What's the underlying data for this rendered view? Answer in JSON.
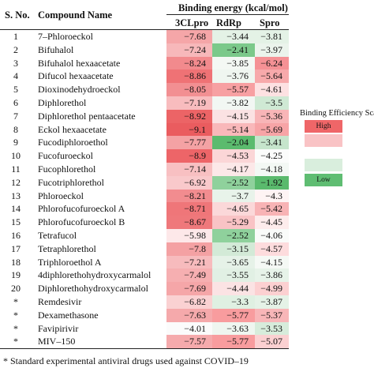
{
  "header": {
    "sno": "S. No.",
    "compound": "Compound Name",
    "group": "Binding energy (kcal/mol)",
    "col1": "3CLpro",
    "col2": "RdRp",
    "col3": "Spro"
  },
  "rows": [
    {
      "sno": "1",
      "name": "7–Phloroeckol",
      "v1": "−7.68",
      "v2": "−3.44",
      "v3": "−3.81"
    },
    {
      "sno": "2",
      "name": "Bifuhalol",
      "v1": "−7.24",
      "v2": "−2.41",
      "v3": "−3.97"
    },
    {
      "sno": "3",
      "name": "Bifuhalol hexaacetate",
      "v1": "−8.24",
      "v2": "−3.85",
      "v3": "−6.24"
    },
    {
      "sno": "4",
      "name": "Difucol hexaacetate",
      "v1": "−8.86",
      "v2": "−3.76",
      "v3": "−5.64"
    },
    {
      "sno": "5",
      "name": "Dioxinodehydroeckol",
      "v1": "−8.05",
      "v2": "−5.57",
      "v3": "−4.61"
    },
    {
      "sno": "6",
      "name": "Diphlorethol",
      "v1": "−7.19",
      "v2": "−3.82",
      "v3": "−3.5"
    },
    {
      "sno": "7",
      "name": "Diphlorethol pentaacetate",
      "v1": "−8.92",
      "v2": "−4.15",
      "v3": "−5.36"
    },
    {
      "sno": "8",
      "name": "Eckol hexaacetate",
      "v1": "−9.1",
      "v2": "−5.14",
      "v3": "−5.69"
    },
    {
      "sno": "9",
      "name": "Fucodiphloroethol",
      "v1": "−7.77",
      "v2": "−2.04",
      "v3": "−3.41"
    },
    {
      "sno": "10",
      "name": "Fucofuroeckol",
      "v1": "−8.9",
      "v2": "−4.53",
      "v3": "−4.25"
    },
    {
      "sno": "11",
      "name": "Fucophlorethol",
      "v1": "−7.14",
      "v2": "−4.17",
      "v3": "−4.18"
    },
    {
      "sno": "12",
      "name": "Fucotriphlorethol",
      "v1": "−6.92",
      "v2": "−2.52",
      "v3": "−1.92"
    },
    {
      "sno": "13",
      "name": "Phloroeckol",
      "v1": "−8.21",
      "v2": "−3.7",
      "v3": "−4.3"
    },
    {
      "sno": "14",
      "name": "Phlorofucofuroeckol A",
      "v1": "−8.71",
      "v2": "−4.65",
      "v3": "−5.42"
    },
    {
      "sno": "15",
      "name": "Phlorofucofuroeckol B",
      "v1": "−8.67",
      "v2": "−5.29",
      "v3": "−4.45"
    },
    {
      "sno": "16",
      "name": "Tetrafucol",
      "v1": "−5.98",
      "v2": "−2.52",
      "v3": "−4.06"
    },
    {
      "sno": "17",
      "name": "Tetraphlorethol",
      "v1": "−7.8",
      "v2": "−3.15",
      "v3": "−4.57"
    },
    {
      "sno": "18",
      "name": "Triphloroethol A",
      "v1": "−7.21",
      "v2": "−3.65",
      "v3": "−4.15"
    },
    {
      "sno": "19",
      "name": "4diphlorethohydroxycarmalol",
      "v1": "−7.49",
      "v2": "−3.55",
      "v3": "−3.86"
    },
    {
      "sno": "20",
      "name": "Diphlorethohydroxycarmalol",
      "v1": "−7.69",
      "v2": "−4.44",
      "v3": "−4.99"
    },
    {
      "sno": "*",
      "name": "Remdesivir",
      "v1": "−6.82",
      "v2": "−3.3",
      "v3": "−3.87"
    },
    {
      "sno": "*",
      "name": "Dexamethasone",
      "v1": "−7.63",
      "v2": "−5.77",
      "v3": "−5.37"
    },
    {
      "sno": "*",
      "name": "Favipirivir",
      "v1": "−4.01",
      "v2": "−3.63",
      "v3": "−3.53"
    },
    {
      "sno": "*",
      "name": "MIV–150",
      "v1": "−7.57",
      "v2": "−5.77",
      "v3": "−5.07"
    }
  ],
  "cell_colors": {
    "v1": [
      "#f5a6a8",
      "#f7b8ba",
      "#f28a8d",
      "#ef7275",
      "#f28f92",
      "#f8bcbe",
      "#ec6466",
      "#ea5c5f",
      "#f4a2a4",
      "#ed6568",
      "#f8c0c2",
      "#f9c9cb",
      "#f28c8f",
      "#ef7679",
      "#ef787b",
      "#fde8e9",
      "#f4a1a3",
      "#f7bbbd",
      "#f6afb1",
      "#f5a6a8",
      "#fad1d2",
      "#f5a9ab",
      "#fbfbfb",
      "#f5aaac"
    ],
    "v2": [
      "#e4f2e6",
      "#7bc98a",
      "#f4f8f4",
      "#eff6f0",
      "#f7a0a2",
      "#f2f7f3",
      "#fbe2e3",
      "#f9b8ba",
      "#5bbb6e",
      "#fbd6d7",
      "#fce8e8",
      "#8fd19c",
      "#e8f3ea",
      "#fbd8d9",
      "#f9c3c5",
      "#8fd19c",
      "#d3ead7",
      "#e6f2e8",
      "#e1f0e4",
      "#fbe3e4",
      "#dff0e2",
      "#f89c9e",
      "#eff6f0",
      "#f89c9e"
    ],
    "v3": [
      "#e4f2e6",
      "#ebf4ec",
      "#f59195",
      "#f7a9ab",
      "#fde1e2",
      "#cfe9d4",
      "#f8b5b7",
      "#f7a4a6",
      "#c6e5cc",
      "#fbfcfb",
      "#f3f8f4",
      "#5aba6d",
      "#fef4f4",
      "#f8b3b5",
      "#fdecec",
      "#f9fbf9",
      "#fddcdd",
      "#f5f9f5",
      "#e7f3e9",
      "#fcd0d1",
      "#e5f2e7",
      "#f8b6b8",
      "#d7ecdb",
      "#fbd0d1"
    ]
  },
  "scale": {
    "title": "Binding Efficiency Scale",
    "high_label": "High",
    "low_label": "Low",
    "colors": [
      "#ef6668",
      "#f9c3c5",
      "#ffffff",
      "#d9eedd",
      "#5fbd72"
    ]
  },
  "footnote": "* Standard experimental antiviral drugs used against COVID–19"
}
